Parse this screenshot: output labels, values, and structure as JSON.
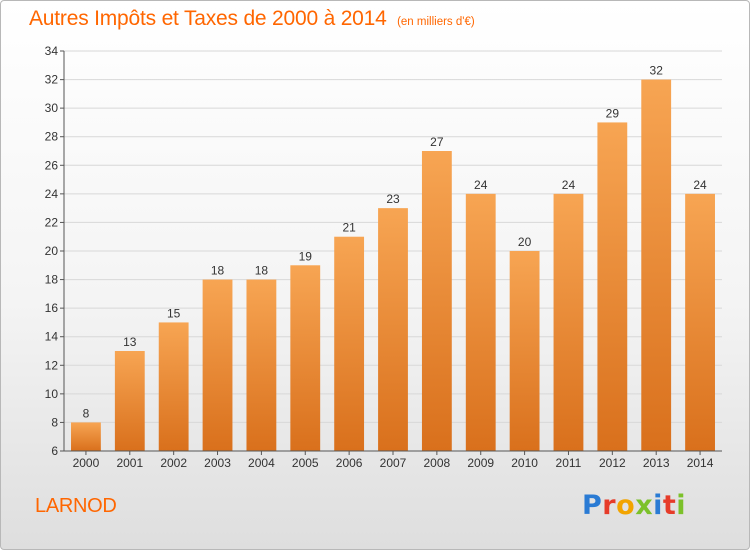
{
  "header": {
    "title": "Autres Impôts et Taxes de 2000 à 2014",
    "unit": "(en milliers d'€)"
  },
  "footer": {
    "commune": "LARNOD",
    "logo_letters": [
      "P",
      "r",
      "o",
      "x",
      "i",
      "t",
      "i"
    ]
  },
  "colors": {
    "accent": "#ff6600",
    "bar_top": "#f7a553",
    "bar_bottom": "#d9701c"
  },
  "chart_data": {
    "type": "bar",
    "title": "Autres Impôts et Taxes de 2000 à 2014",
    "subtitle": "(en milliers d'€)",
    "xlabel": "",
    "ylabel": "",
    "categories": [
      "2000",
      "2001",
      "2002",
      "2003",
      "2004",
      "2005",
      "2006",
      "2007",
      "2008",
      "2009",
      "2010",
      "2011",
      "2012",
      "2013",
      "2014"
    ],
    "values": [
      8,
      13,
      15,
      18,
      18,
      19,
      21,
      23,
      27,
      24,
      20,
      24,
      29,
      32,
      24
    ],
    "ylim": [
      6,
      34
    ],
    "yticks": [
      6,
      8,
      10,
      12,
      14,
      16,
      18,
      20,
      22,
      24,
      26,
      28,
      30,
      32,
      34
    ],
    "grid": true,
    "legend": "none"
  }
}
